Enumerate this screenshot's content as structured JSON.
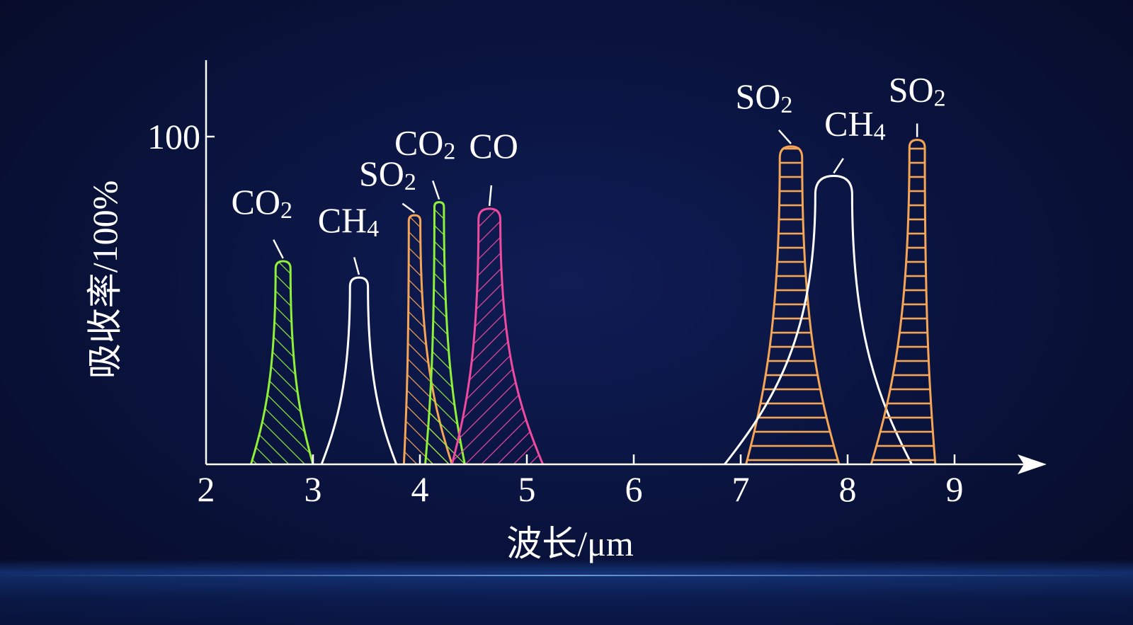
{
  "chart_data": {
    "type": "area",
    "xlabel": "波长/μm",
    "ylabel": "吸收率/100%",
    "xlim": [
      2,
      9.8
    ],
    "ylim": [
      0,
      100
    ],
    "x_ticks": [
      "2",
      "3",
      "4",
      "5",
      "6",
      "7",
      "8",
      "9"
    ],
    "y_ticks": [
      "100"
    ],
    "colors": {
      "axis": "#ffffff",
      "CO2": "#8ff03a",
      "CH4": "#ffffff",
      "SO2": "#f5a556",
      "CO": "#ef4aa0"
    },
    "series": [
      {
        "gas": "CO2",
        "label": "CO",
        "sub": "2",
        "color": "#8ff03a",
        "hatch": "diagonal",
        "left": 2.42,
        "peak_x": 2.72,
        "right": 3.0,
        "peak": 62
      },
      {
        "gas": "CH4",
        "label": "CH",
        "sub": "4",
        "color": "#ffffff",
        "hatch": "none",
        "left": 3.08,
        "peak_x": 3.43,
        "right": 3.78,
        "peak": 57
      },
      {
        "gas": "SO2",
        "label": "SO",
        "sub": "2",
        "color": "#f5a556",
        "hatch": "diagonal",
        "left": 3.85,
        "peak_x": 3.95,
        "right": 4.3,
        "peak": 76
      },
      {
        "gas": "CO2",
        "label": "CO",
        "sub": "2",
        "color": "#8ff03a",
        "hatch": "diagonal",
        "left": 4.05,
        "peak_x": 4.18,
        "right": 4.42,
        "peak": 80
      },
      {
        "gas": "CO",
        "label": "CO",
        "sub": "",
        "color": "#ef4aa0",
        "hatch": "backslash",
        "left": 4.3,
        "peak_x": 4.65,
        "right": 5.15,
        "peak": 78
      },
      {
        "gas": "SO2",
        "label": "SO",
        "sub": "2",
        "color": "#f5a556",
        "hatch": "horizontal",
        "left": 7.05,
        "peak_x": 7.47,
        "right": 7.92,
        "peak": 97
      },
      {
        "gas": "CH4",
        "label": "CH",
        "sub": "4",
        "color": "#ffffff",
        "hatch": "none",
        "left": 6.85,
        "peak_x": 7.87,
        "right": 8.6,
        "peak": 88
      },
      {
        "gas": "SO2",
        "label": "SO",
        "sub": "2",
        "color": "#f5a556",
        "hatch": "horizontal",
        "left": 8.22,
        "peak_x": 8.65,
        "right": 8.82,
        "peak": 99
      }
    ]
  }
}
